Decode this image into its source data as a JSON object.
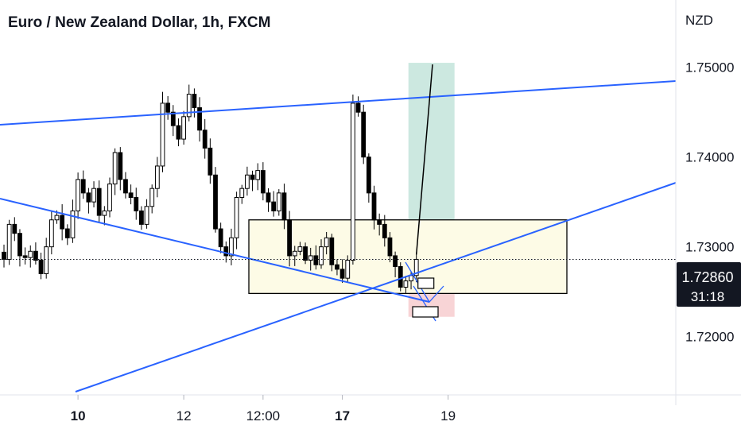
{
  "header": {
    "title": "Euro / New Zealand Dollar, 1h, FXCM",
    "currency": "NZD"
  },
  "price_badge": {
    "price": "1.72860",
    "countdown": "31:18",
    "color": "#131722"
  },
  "colors": {
    "trendline": "#2962ff",
    "target_zone": "#cce8e0",
    "stop_zone": "#f8d4d6",
    "range_box": "#fdfbe6",
    "candle": "#000000"
  },
  "chart_data": {
    "type": "candlestick",
    "ylim": [
      1.7135,
      1.7575
    ],
    "y_ticks": [
      "1.75000",
      "1.74000",
      "1.73000",
      "1.72000"
    ],
    "y_tick_values": [
      1.75,
      1.74,
      1.73,
      1.72
    ],
    "x_ticks": [
      {
        "label": "10",
        "bold": true,
        "index": 14
      },
      {
        "label": "12",
        "bold": false,
        "index": 34
      },
      {
        "label": "12:00",
        "bold": false,
        "index": 49
      },
      {
        "label": "17",
        "bold": true,
        "index": 64
      },
      {
        "label": "19",
        "bold": false,
        "index": 84
      }
    ],
    "last_price": 1.7286,
    "close": [
      1.7286,
      1.7325,
      1.7315,
      1.729,
      1.7288,
      1.7295,
      1.7285,
      1.727,
      1.73,
      1.733,
      1.7335,
      1.732,
      1.731,
      1.734,
      1.7375,
      1.736,
      1.735,
      1.7365,
      1.7335,
      1.734,
      1.737,
      1.7405,
      1.7375,
      1.736,
      1.7355,
      1.734,
      1.7325,
      1.7345,
      1.7365,
      1.739,
      1.746,
      1.745,
      1.7435,
      1.742,
      1.7445,
      1.747,
      1.7455,
      1.743,
      1.741,
      1.738,
      1.732,
      1.73,
      1.729,
      1.731,
      1.7355,
      1.7365,
      1.738,
      1.7375,
      1.7385,
      1.736,
      1.735,
      1.734,
      1.736,
      1.733,
      1.729,
      1.7295,
      1.73,
      1.7285,
      1.729,
      1.728,
      1.73,
      1.731,
      1.728,
      1.7275,
      1.7265,
      1.7285,
      1.746,
      1.745,
      1.74,
      1.736,
      1.733,
      1.7325,
      1.731,
      1.729,
      1.7278,
      1.7255,
      1.7262,
      1.7268,
      1.7286
    ]
  },
  "annotations": {
    "range_box": {
      "y_high": 1.733,
      "y_low": 1.7248
    },
    "target_price": 1.7505,
    "entry_price": 1.7279,
    "stop_price": 1.7222
  }
}
